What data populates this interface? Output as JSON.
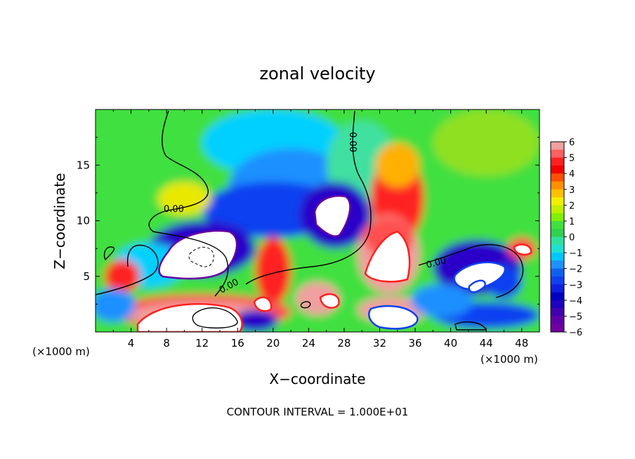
{
  "chart_data": {
    "type": "heatmap",
    "title": "zonal velocity",
    "xlabel": "X−coordinate",
    "ylabel": "Z−coordinate",
    "x_unit_left": "(×1000 m)",
    "x_unit_right": "(×1000 m)",
    "xlim": [
      0,
      50
    ],
    "ylim": [
      0,
      20
    ],
    "x_ticks": [
      "4",
      "8",
      "12",
      "16",
      "20",
      "24",
      "28",
      "32",
      "36",
      "40",
      "44",
      "48"
    ],
    "y_ticks": [
      "5",
      "10",
      "15"
    ],
    "colorbar": {
      "ticks": [
        "6",
        "5",
        "4",
        "3",
        "2",
        "1",
        "0",
        "−1",
        "−2",
        "−3",
        "−4",
        "−5",
        "−6"
      ],
      "range": [
        -6,
        6
      ]
    },
    "contour_labels": [
      "0.00",
      "0.00",
      "0.00",
      "0.00"
    ],
    "footer": "CONTOUR INTERVAL = 1.000E+01"
  },
  "colors": {
    "background": "#ffffff",
    "field_zero": "#40e040",
    "positive_max": "#f0a0a0",
    "negative_max": "#6600a0"
  }
}
